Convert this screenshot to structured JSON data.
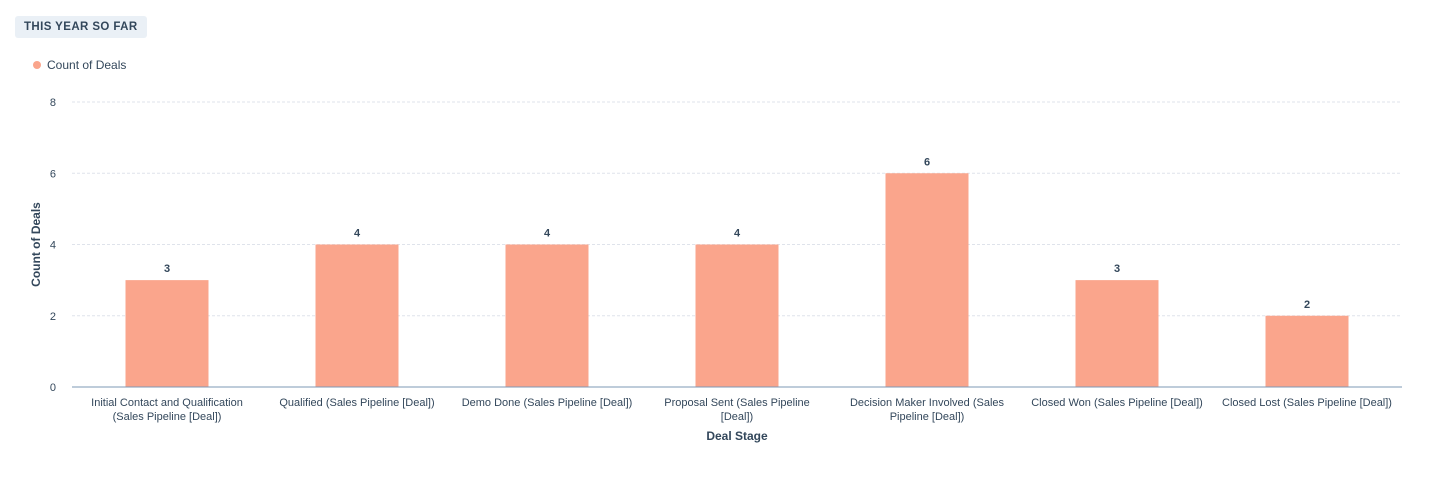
{
  "header": {
    "badge": "THIS YEAR SO FAR"
  },
  "legend": {
    "label": "Count of Deals",
    "color": "#faa58c"
  },
  "chart_data": {
    "type": "bar",
    "categories": [
      "Initial Contact and Qualification (Sales Pipeline [Deal])",
      "Qualified (Sales Pipeline [Deal])",
      "Demo Done (Sales Pipeline [Deal])",
      "Proposal Sent (Sales Pipeline [Deal])",
      "Decision Maker Involved (Sales Pipeline [Deal])",
      "Closed Won (Sales Pipeline [Deal])",
      "Closed Lost (Sales Pipeline [Deal])"
    ],
    "category_lines": [
      [
        "Initial Contact and Qualification",
        "(Sales Pipeline [Deal])"
      ],
      [
        "Qualified (Sales Pipeline [Deal])"
      ],
      [
        "Demo Done (Sales Pipeline [Deal])"
      ],
      [
        "Proposal Sent (Sales Pipeline",
        "[Deal])"
      ],
      [
        "Decision Maker Involved (Sales",
        "Pipeline [Deal])"
      ],
      [
        "Closed Won (Sales Pipeline [Deal])"
      ],
      [
        "Closed Lost (Sales Pipeline [Deal])"
      ]
    ],
    "series": [
      {
        "name": "Count of Deals",
        "values": [
          3,
          4,
          4,
          4,
          6,
          3,
          2
        ],
        "color": "#faa58c"
      }
    ],
    "xlabel": "Deal Stage",
    "ylabel": "Count of Deals",
    "ylim": [
      0,
      8
    ],
    "yticks": [
      0,
      2,
      4,
      6,
      8
    ],
    "grid": true,
    "data_labels": true,
    "legend_position": "top-left"
  }
}
